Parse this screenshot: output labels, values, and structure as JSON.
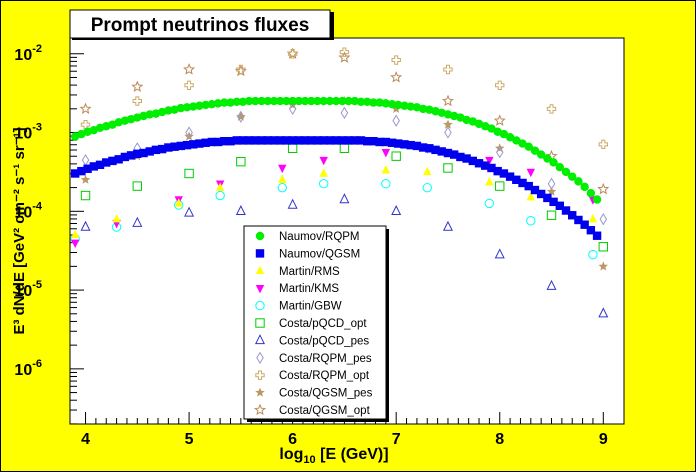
{
  "chart_data": {
    "type": "scatter",
    "title": "Prompt neutrinos fluxes",
    "xlabel_main": "log",
    "xlabel_sub": "10",
    "xlabel_rest": " [E (GeV)]",
    "ylabel": "E³ dN/dE [GeV² cm⁻² s⁻¹ sr⁻¹]",
    "xlim": [
      3.85,
      9.2
    ],
    "ylim_log10": [
      -6.7,
      -1.8
    ],
    "y_scale": "log",
    "x_ticks": [
      "4",
      "5",
      "6",
      "7",
      "8",
      "9"
    ],
    "x_tick_values": [
      4,
      5,
      6,
      7,
      8,
      9
    ],
    "y_ticks": [
      {
        "base": "10",
        "exp": "-6",
        "value": -6
      },
      {
        "base": "10",
        "exp": "-5",
        "value": -5
      },
      {
        "base": "10",
        "exp": "-4",
        "value": -4
      },
      {
        "base": "10",
        "exp": "-3",
        "value": -3
      },
      {
        "base": "10",
        "exp": "-2",
        "value": -2
      }
    ],
    "legend_position": "bottom-center",
    "colors": {
      "background": "#ffff00",
      "plot_background": "#ffffff",
      "green": "#00ee00",
      "blue": "#0000ee",
      "yellow": "#ffff00",
      "magenta": "#ff00ff",
      "cyan": "#00ffff",
      "tan": "#ccaa66",
      "darktan": "#bb8855"
    },
    "series": [
      {
        "name": "Naumov/RQPM",
        "marker": "circle-filled",
        "color": "#00ee00",
        "x": [
          3.9,
          3.96,
          4.02,
          4.08,
          4.14,
          4.2,
          4.26,
          4.32,
          4.38,
          4.44,
          4.5,
          4.56,
          4.62,
          4.68,
          4.74,
          4.8,
          4.86,
          4.92,
          4.98,
          5.04,
          5.1,
          5.16,
          5.22,
          5.28,
          5.34,
          5.4,
          5.46,
          5.52,
          5.58,
          5.64,
          5.7,
          5.76,
          5.82,
          5.88,
          5.94,
          6.0,
          6.06,
          6.12,
          6.18,
          6.24,
          6.3,
          6.36,
          6.42,
          6.48,
          6.54,
          6.6,
          6.66,
          6.72,
          6.78,
          6.84,
          6.9,
          6.96,
          7.02,
          7.08,
          7.14,
          7.2,
          7.26,
          7.32,
          7.38,
          7.44,
          7.5,
          7.56,
          7.62,
          7.68,
          7.74,
          7.8,
          7.86,
          7.92,
          7.98,
          8.04,
          8.1,
          8.16,
          8.22,
          8.28,
          8.34,
          8.4,
          8.46,
          8.52,
          8.58,
          8.64,
          8.7,
          8.76,
          8.82,
          8.88,
          8.94
        ],
        "y_log10": [
          -3.05,
          -3.02,
          -2.99,
          -2.97,
          -2.94,
          -2.92,
          -2.9,
          -2.87,
          -2.85,
          -2.83,
          -2.81,
          -2.79,
          -2.77,
          -2.76,
          -2.74,
          -2.72,
          -2.71,
          -2.69,
          -2.68,
          -2.67,
          -2.66,
          -2.65,
          -2.64,
          -2.63,
          -2.62,
          -2.62,
          -2.61,
          -2.61,
          -2.6,
          -2.6,
          -2.6,
          -2.6,
          -2.6,
          -2.6,
          -2.6,
          -2.6,
          -2.6,
          -2.6,
          -2.6,
          -2.6,
          -2.6,
          -2.6,
          -2.6,
          -2.6,
          -2.6,
          -2.6,
          -2.61,
          -2.61,
          -2.62,
          -2.62,
          -2.63,
          -2.64,
          -2.65,
          -2.66,
          -2.67,
          -2.68,
          -2.7,
          -2.71,
          -2.73,
          -2.75,
          -2.77,
          -2.79,
          -2.81,
          -2.84,
          -2.86,
          -2.89,
          -2.92,
          -2.95,
          -2.99,
          -3.02,
          -3.06,
          -3.1,
          -3.14,
          -3.18,
          -3.23,
          -3.28,
          -3.33,
          -3.38,
          -3.44,
          -3.5,
          -3.56,
          -3.62,
          -3.69,
          -3.77,
          -3.85
        ]
      },
      {
        "name": "Naumov/QGSM",
        "marker": "square-filled",
        "color": "#0000ee",
        "x": [
          3.9,
          3.96,
          4.02,
          4.08,
          4.14,
          4.2,
          4.26,
          4.32,
          4.38,
          4.44,
          4.5,
          4.56,
          4.62,
          4.68,
          4.74,
          4.8,
          4.86,
          4.92,
          4.98,
          5.04,
          5.1,
          5.16,
          5.22,
          5.28,
          5.34,
          5.4,
          5.46,
          5.52,
          5.58,
          5.64,
          5.7,
          5.76,
          5.82,
          5.88,
          5.94,
          6.0,
          6.06,
          6.12,
          6.18,
          6.24,
          6.3,
          6.36,
          6.42,
          6.48,
          6.54,
          6.6,
          6.66,
          6.72,
          6.78,
          6.84,
          6.9,
          6.96,
          7.02,
          7.08,
          7.14,
          7.2,
          7.26,
          7.32,
          7.38,
          7.44,
          7.5,
          7.56,
          7.62,
          7.68,
          7.74,
          7.8,
          7.86,
          7.92,
          7.98,
          8.04,
          8.1,
          8.16,
          8.22,
          8.28,
          8.34,
          8.4,
          8.46,
          8.52,
          8.58,
          8.64,
          8.7,
          8.76,
          8.82,
          8.88,
          8.94
        ],
        "y_log10": [
          -3.52,
          -3.49,
          -3.46,
          -3.43,
          -3.41,
          -3.38,
          -3.36,
          -3.34,
          -3.31,
          -3.29,
          -3.27,
          -3.26,
          -3.24,
          -3.22,
          -3.21,
          -3.19,
          -3.18,
          -3.17,
          -3.16,
          -3.15,
          -3.14,
          -3.13,
          -3.12,
          -3.12,
          -3.11,
          -3.11,
          -3.1,
          -3.1,
          -3.1,
          -3.1,
          -3.1,
          -3.1,
          -3.1,
          -3.1,
          -3.1,
          -3.1,
          -3.1,
          -3.1,
          -3.1,
          -3.1,
          -3.1,
          -3.1,
          -3.1,
          -3.1,
          -3.1,
          -3.1,
          -3.1,
          -3.11,
          -3.11,
          -3.12,
          -3.12,
          -3.13,
          -3.14,
          -3.15,
          -3.16,
          -3.17,
          -3.19,
          -3.2,
          -3.22,
          -3.24,
          -3.26,
          -3.28,
          -3.31,
          -3.33,
          -3.36,
          -3.39,
          -3.42,
          -3.45,
          -3.49,
          -3.52,
          -3.56,
          -3.6,
          -3.64,
          -3.68,
          -3.73,
          -3.78,
          -3.83,
          -3.88,
          -3.93,
          -3.99,
          -4.05,
          -4.11,
          -4.17,
          -4.24,
          -4.31
        ]
      },
      {
        "name": "Martin/RMS",
        "marker": "triangle-up-filled",
        "color": "#ffff00",
        "x": [
          3.9,
          4.3,
          4.9,
          5.3,
          5.9,
          6.3,
          6.9,
          7.3,
          7.9,
          8.3,
          8.9
        ],
        "y_log10": [
          -4.3,
          -4.1,
          -3.9,
          -3.7,
          -3.6,
          -3.52,
          -3.48,
          -3.5,
          -3.63,
          -3.82,
          -4.1
        ]
      },
      {
        "name": "Martin/KMS",
        "marker": "triangle-down-filled",
        "color": "#ff00ff",
        "x": [
          3.9,
          4.3,
          4.9,
          5.3,
          5.9,
          6.3,
          6.9,
          7.3,
          7.9,
          8.3,
          8.9
        ],
        "y_log10": [
          -4.4,
          -4.15,
          -3.85,
          -3.65,
          -3.45,
          -3.35,
          -3.25,
          -3.2,
          -3.35,
          -3.5,
          -3.85
        ]
      },
      {
        "name": "Martin/GBW",
        "marker": "circle-open",
        "color": "#00ffff",
        "x": [
          3.9,
          4.3,
          4.9,
          5.3,
          5.9,
          6.3,
          6.9,
          7.3,
          7.9,
          8.3,
          8.9
        ],
        "y_log10": [
          -4.35,
          -4.2,
          -3.92,
          -3.8,
          -3.7,
          -3.65,
          -3.65,
          -3.7,
          -3.9,
          -4.12,
          -4.55
        ]
      },
      {
        "name": "Costa/pQCD_opt",
        "marker": "square-open",
        "color": "#00cc00",
        "x": [
          4.0,
          4.5,
          5.0,
          5.5,
          6.0,
          6.5,
          7.0,
          7.5,
          8.0,
          8.5,
          9.0
        ],
        "y_log10": [
          -3.8,
          -3.68,
          -3.52,
          -3.37,
          -3.2,
          -3.2,
          -3.3,
          -3.45,
          -3.68,
          -4.05,
          -4.45
        ]
      },
      {
        "name": "Costa/pQCD_pes",
        "marker": "triangle-open",
        "color": "#3333cc",
        "x": [
          4.0,
          4.5,
          5.0,
          5.5,
          6.0,
          6.5,
          7.0,
          7.5,
          8.0,
          8.5,
          9.0
        ],
        "y_log10": [
          -4.2,
          -4.15,
          -4.02,
          -4.0,
          -3.92,
          -3.85,
          -4.0,
          -4.2,
          -4.55,
          -4.95,
          -5.3
        ]
      },
      {
        "name": "Costa/RQPM_pes",
        "marker": "diamond-open",
        "color": "#9999cc",
        "x": [
          4.0,
          4.5,
          5.0,
          5.5,
          6.0,
          6.5,
          7.0,
          7.5,
          8.0,
          8.5,
          9.0
        ],
        "y_log10": [
          -3.35,
          -3.2,
          -3.0,
          -2.8,
          -2.7,
          -2.75,
          -2.85,
          -3.0,
          -3.25,
          -3.65,
          -4.1
        ]
      },
      {
        "name": "Costa/RQPM_opt",
        "marker": "cross-open",
        "color": "#ccaa66",
        "x": [
          4.0,
          4.5,
          5.0,
          5.5,
          6.0,
          6.5,
          7.0,
          7.5,
          8.0,
          8.5,
          9.0
        ],
        "y_log10": [
          -2.9,
          -2.6,
          -2.4,
          -2.2,
          -2.0,
          -1.98,
          -2.08,
          -2.2,
          -2.4,
          -2.7,
          -3.15
        ]
      },
      {
        "name": "Costa/QGSM_pes",
        "marker": "star-filled",
        "color": "#bb9966",
        "x": [
          4.0,
          4.5,
          5.0,
          5.5,
          6.0,
          6.5,
          7.0,
          7.5,
          8.0,
          8.5,
          9.0
        ],
        "y_log10": [
          -3.6,
          -3.3,
          -3.05,
          -2.8,
          -2.65,
          -2.6,
          -2.7,
          -2.9,
          -3.2,
          -3.75,
          -4.7
        ]
      },
      {
        "name": "Costa/QGSM_opt",
        "marker": "star-open",
        "color": "#bb8855",
        "x": [
          4.0,
          4.5,
          5.0,
          5.5,
          6.0,
          6.5,
          7.0,
          7.5,
          8.0,
          8.5,
          9.0
        ],
        "y_log10": [
          -2.7,
          -2.42,
          -2.2,
          -2.22,
          -2.0,
          -2.05,
          -2.3,
          -2.6,
          -2.85,
          -3.3,
          -3.72
        ]
      }
    ]
  }
}
